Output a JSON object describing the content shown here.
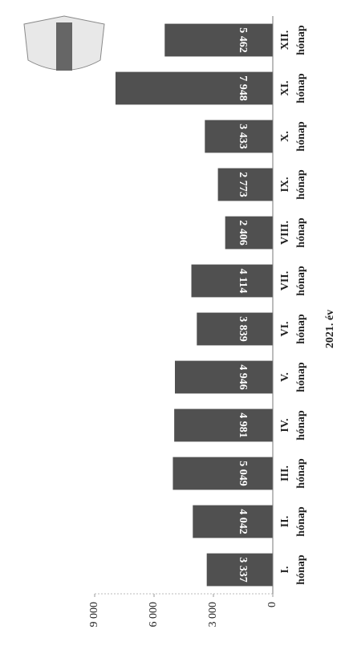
{
  "chart_data": {
    "type": "bar",
    "x_label": "2021. év",
    "categories": [
      [
        "I.",
        "hónap"
      ],
      [
        "II.",
        "hónap"
      ],
      [
        "III.",
        "hónap"
      ],
      [
        "IV.",
        "hónap"
      ],
      [
        "V.",
        "hónap"
      ],
      [
        "VI.",
        "hónap"
      ],
      [
        "VII.",
        "hónap"
      ],
      [
        "VIII.",
        "hónap"
      ],
      [
        "IX.",
        "hónap"
      ],
      [
        "X.",
        "hónap"
      ],
      [
        "XI.",
        "hónap"
      ],
      [
        "XII.",
        "hónap"
      ]
    ],
    "values": [
      3337,
      4042,
      5049,
      4981,
      4946,
      3839,
      4114,
      2406,
      2773,
      3433,
      7948,
      5462
    ],
    "value_labels": [
      "3 337",
      "4 042",
      "5 049",
      "4 981",
      "4 946",
      "3 839",
      "4 114",
      "2 406",
      "2 773",
      "3 433",
      "7 948",
      "5 462"
    ],
    "color": "#505050",
    "ylim": [
      0,
      9000
    ],
    "yticks": [
      0,
      {
        "value": 3000,
        "label": "3 000"
      },
      {
        "value": 6000,
        "label": "6 000"
      },
      {
        "value": 9000,
        "label": "9 000"
      }
    ]
  }
}
